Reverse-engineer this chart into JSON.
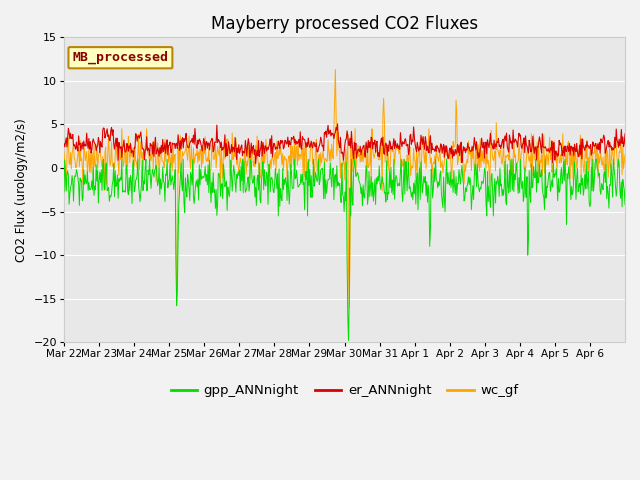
{
  "title": "Mayberry processed CO2 Fluxes",
  "ylabel": "CO2 Flux (urology/m2/s)",
  "ylim": [
    -20,
    15
  ],
  "yticks": [
    -20,
    -15,
    -10,
    -5,
    0,
    5,
    10,
    15
  ],
  "plot_bg_color": "#e8e8e8",
  "fig_bg_color": "#f2f2f2",
  "grid_color": "#ffffff",
  "legend_label": "MB_processed",
  "legend_text_color": "#8b0000",
  "legend_box_facecolor": "#ffffc0",
  "legend_box_edgecolor": "#b8860b",
  "series_colors": {
    "gpp": "#00dd00",
    "er": "#dd0000",
    "wc": "#ffa500"
  },
  "legend_items": [
    {
      "label": "gpp_ANNnight",
      "color": "#00dd00"
    },
    {
      "label": "er_ANNnight",
      "color": "#dd0000"
    },
    {
      "label": "wc_gf",
      "color": "#ffa500"
    }
  ],
  "n_days": 16,
  "n_points_per_day": 48,
  "xlabels": [
    "Mar 22",
    "Mar 23",
    "Mar 24",
    "Mar 25",
    "Mar 26",
    "Mar 27",
    "Mar 28",
    "Mar 29",
    "Mar 30",
    "Mar 31",
    "Apr 1",
    "Apr 2",
    "Apr 3",
    "Apr 4",
    "Apr 5",
    "Apr 6"
  ],
  "seed": 42
}
